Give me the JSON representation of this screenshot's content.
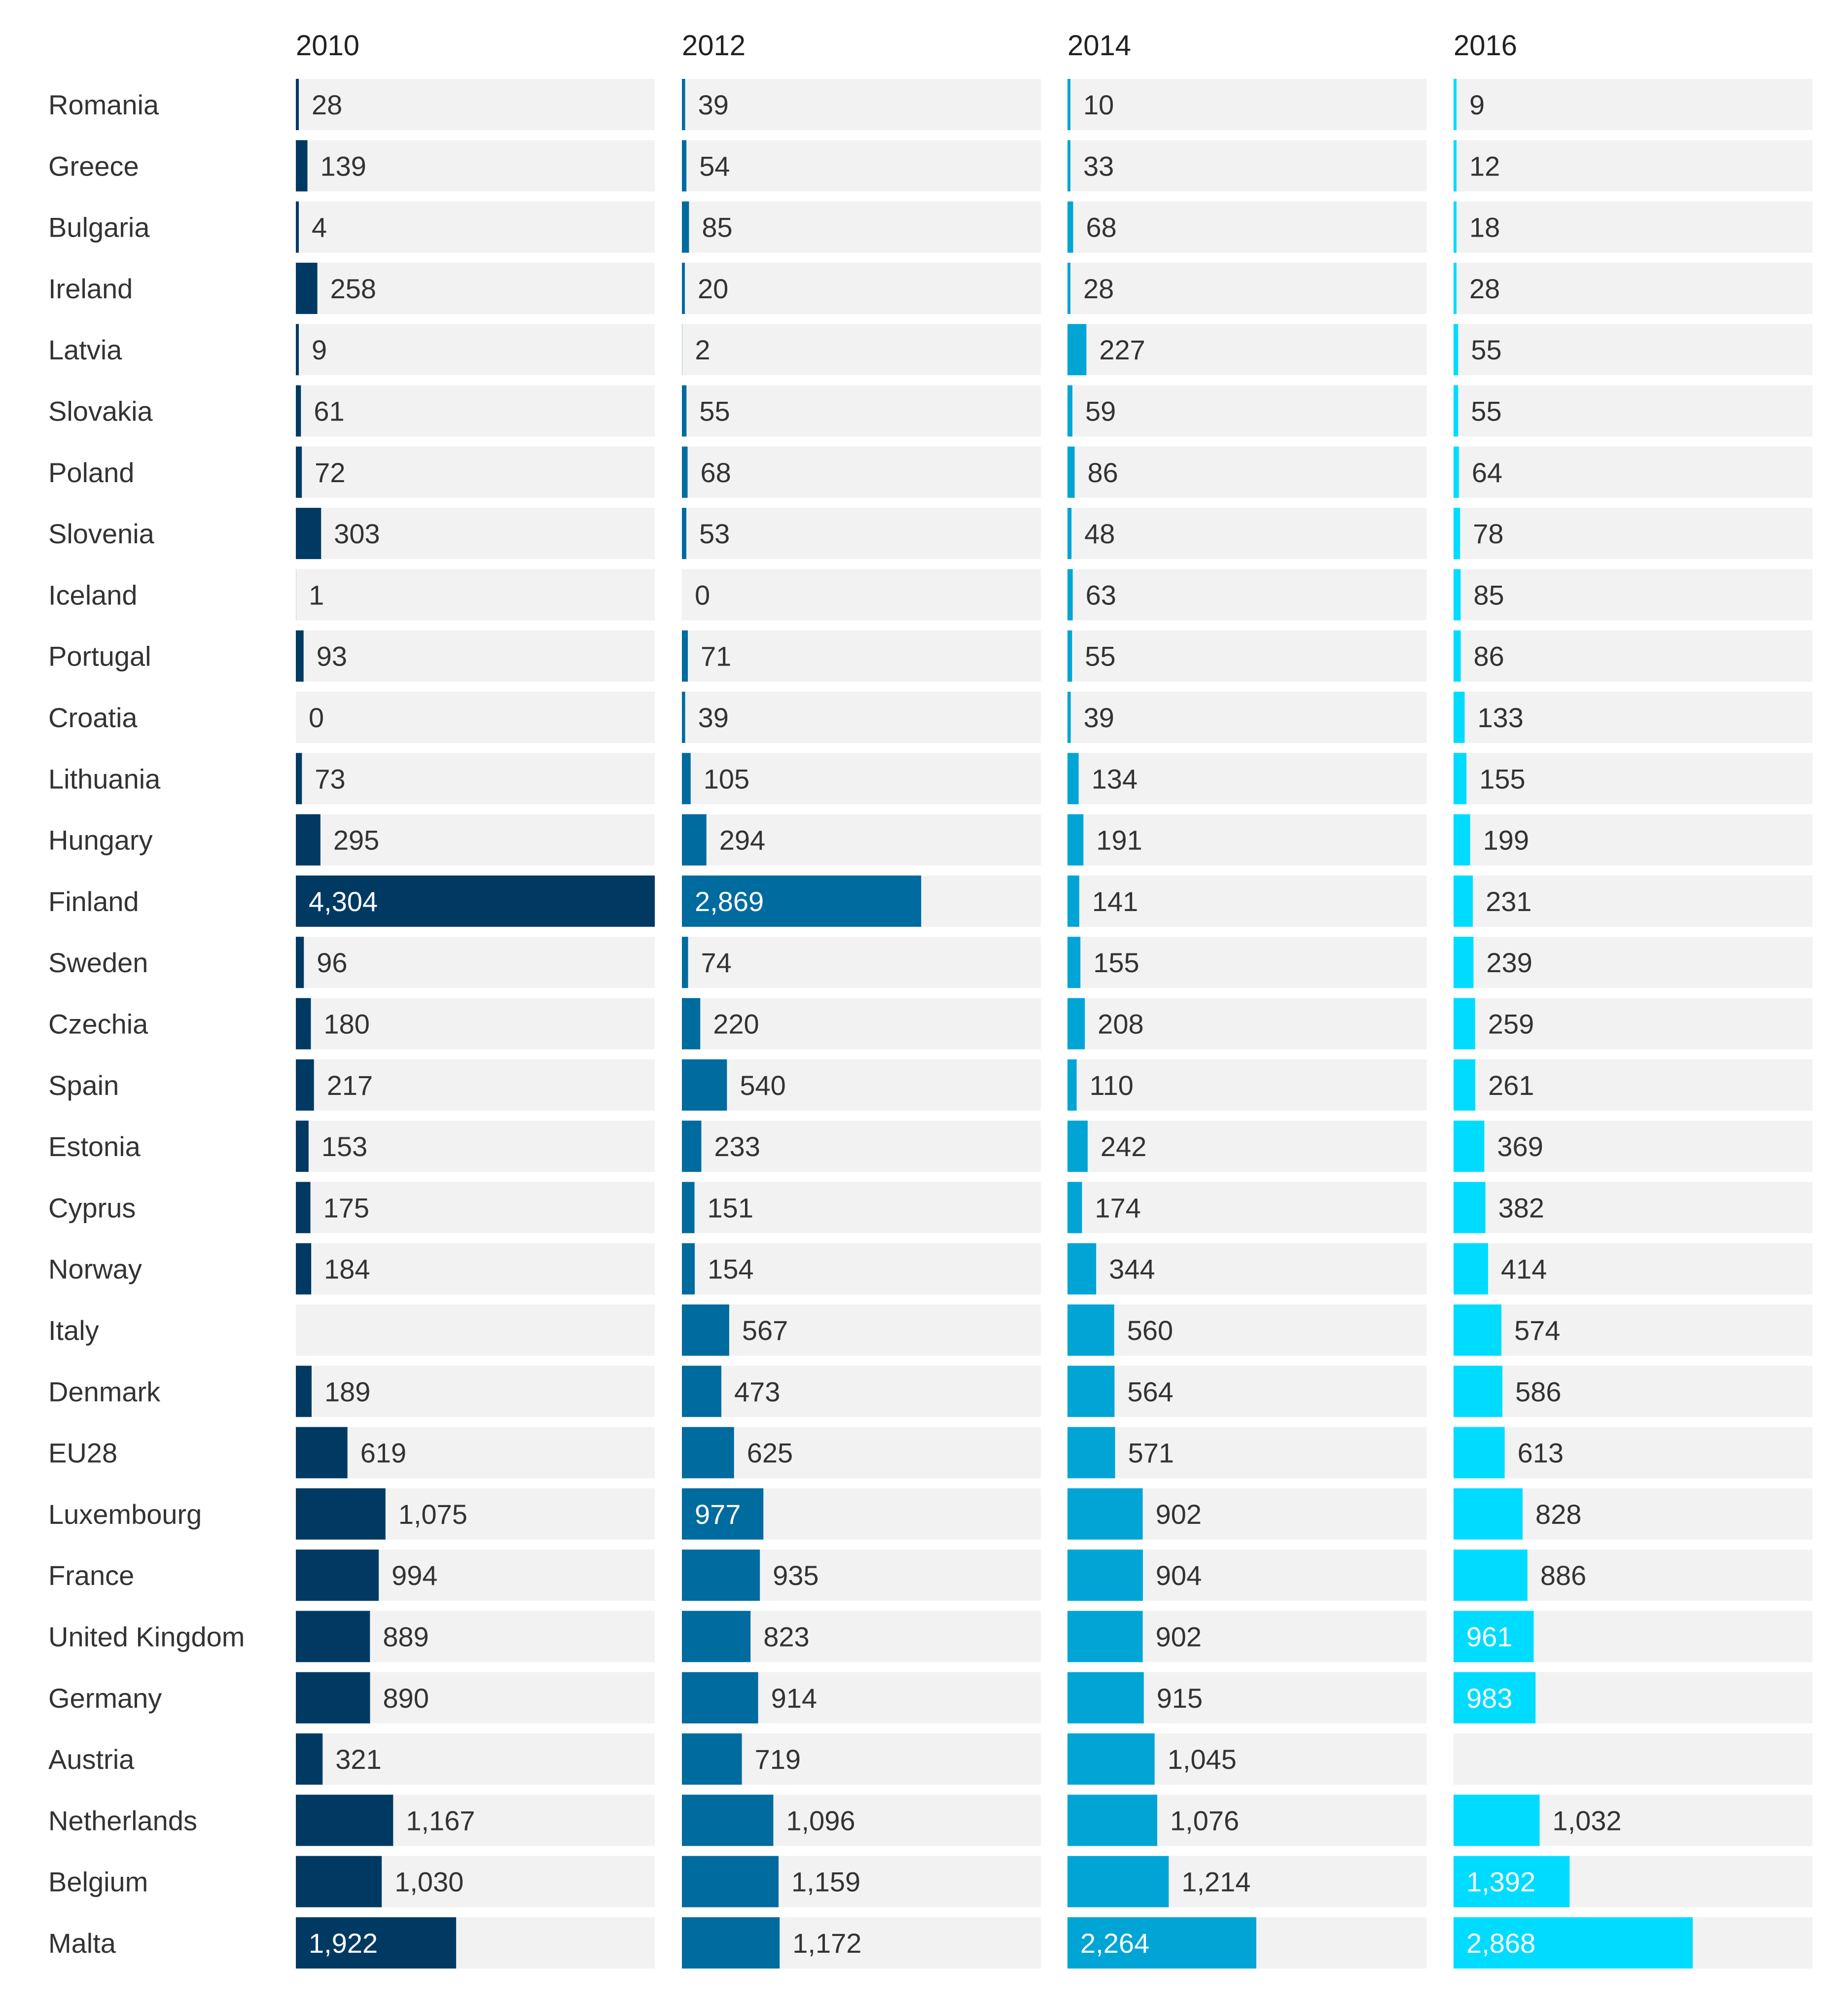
{
  "chart_data": {
    "type": "bar",
    "layout": "small-multiples horizontal bar",
    "title": "",
    "xlabel": "",
    "ylabel": "",
    "xlim": [
      0,
      4304
    ],
    "categories": [
      "Romania",
      "Greece",
      "Bulgaria",
      "Ireland",
      "Latvia",
      "Slovakia",
      "Poland",
      "Slovenia",
      "Iceland",
      "Portugal",
      "Croatia",
      "Lithuania",
      "Hungary",
      "Finland",
      "Sweden",
      "Czechia",
      "Spain",
      "Estonia",
      "Cyprus",
      "Norway",
      "Italy",
      "Denmark",
      "EU28",
      "Luxembourg",
      "France",
      "United Kingdom",
      "Germany",
      "Austria",
      "Netherlands",
      "Belgium",
      "Malta"
    ],
    "series": [
      {
        "name": "2010",
        "color": "#003A63",
        "values": [
          28,
          139,
          4,
          258,
          9,
          61,
          72,
          303,
          1,
          93,
          0,
          73,
          295,
          4304,
          96,
          180,
          217,
          153,
          175,
          184,
          null,
          189,
          619,
          1075,
          994,
          889,
          890,
          321,
          1167,
          1030,
          1922
        ]
      },
      {
        "name": "2012",
        "color": "#006B9E",
        "values": [
          39,
          54,
          85,
          20,
          2,
          55,
          68,
          53,
          0,
          71,
          39,
          105,
          294,
          2869,
          74,
          220,
          540,
          233,
          151,
          154,
          567,
          473,
          625,
          977,
          935,
          823,
          914,
          719,
          1096,
          1159,
          1172
        ]
      },
      {
        "name": "2014",
        "color": "#00A5D6",
        "values": [
          10,
          33,
          68,
          28,
          227,
          59,
          86,
          48,
          63,
          55,
          39,
          134,
          191,
          141,
          155,
          208,
          110,
          242,
          174,
          344,
          560,
          564,
          571,
          902,
          904,
          902,
          915,
          1045,
          1076,
          1214,
          2264
        ]
      },
      {
        "name": "2016",
        "color": "#00DCFF",
        "values": [
          9,
          12,
          18,
          28,
          55,
          55,
          64,
          78,
          85,
          86,
          133,
          155,
          199,
          231,
          239,
          259,
          261,
          369,
          382,
          414,
          574,
          586,
          613,
          828,
          886,
          961,
          983,
          null,
          1032,
          1392,
          2868
        ]
      }
    ],
    "value_labels": [
      [
        "28",
        "139",
        "4",
        "258",
        "9",
        "61",
        "72",
        "303",
        "1",
        "93",
        "0",
        "73",
        "295",
        "4,304",
        "96",
        "180",
        "217",
        "153",
        "175",
        "184",
        "",
        "189",
        "619",
        "1,075",
        "994",
        "889",
        "890",
        "321",
        "1,167",
        "1,030",
        "1,922"
      ],
      [
        "39",
        "54",
        "85",
        "20",
        "2",
        "55",
        "68",
        "53",
        "0",
        "71",
        "39",
        "105",
        "294",
        "2,869",
        "74",
        "220",
        "540",
        "233",
        "151",
        "154",
        "567",
        "473",
        "625",
        "977",
        "935",
        "823",
        "914",
        "719",
        "1,096",
        "1,159",
        "1,172"
      ],
      [
        "10",
        "33",
        "68",
        "28",
        "227",
        "59",
        "86",
        "48",
        "63",
        "55",
        "39",
        "134",
        "191",
        "141",
        "155",
        "208",
        "110",
        "242",
        "174",
        "344",
        "560",
        "564",
        "571",
        "902",
        "904",
        "902",
        "915",
        "1,045",
        "1,076",
        "1,214",
        "2,264"
      ],
      [
        "9",
        "12",
        "18",
        "28",
        "55",
        "55",
        "64",
        "78",
        "85",
        "86",
        "133",
        "155",
        "199",
        "231",
        "239",
        "259",
        "261",
        "369",
        "382",
        "414",
        "574",
        "586",
        "613",
        "828",
        "886",
        "961",
        "983",
        "",
        "1,032",
        "1,392",
        "2,868"
      ]
    ],
    "inside_labels": [
      [
        13,
        30
      ],
      [
        13,
        23
      ],
      [
        30
      ],
      [
        25,
        26,
        29,
        30
      ]
    ],
    "track_color": "#F2F2F2",
    "label_color": "#333333",
    "inside_label_color": "#FFFFFF"
  }
}
